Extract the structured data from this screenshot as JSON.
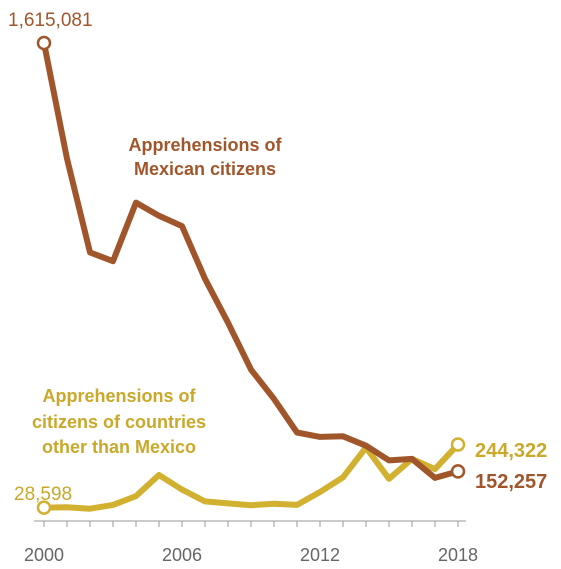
{
  "chart_data": {
    "type": "line",
    "x": [
      2000,
      2001,
      2002,
      2003,
      2004,
      2005,
      2006,
      2007,
      2008,
      2009,
      2010,
      2011,
      2012,
      2013,
      2014,
      2015,
      2016,
      2017,
      2018
    ],
    "xlim": [
      2000,
      2018
    ],
    "ylim": [
      0,
      1615081
    ],
    "xticks": [
      "2000",
      "2006",
      "2012",
      "2018"
    ],
    "grid": false,
    "series": [
      {
        "name": "Apprehensions of Mexican citizens",
        "label_lines": [
          "Apprehensions of",
          "Mexican citizens"
        ],
        "color": "#a0562a",
        "values": [
          1615081,
          1220000,
          900000,
          870000,
          1070000,
          1025000,
          990000,
          810000,
          660000,
          500000,
          400000,
          285000,
          270000,
          272000,
          240000,
          190000,
          195000,
          130000,
          152257
        ],
        "start_label": "1,615,081",
        "end_label": "152,257"
      },
      {
        "name": "Apprehensions of citizens of countries other than Mexico",
        "label_lines": [
          "Apprehensions of",
          "citizens of countries",
          "other than Mexico"
        ],
        "color": "#d1b12f",
        "values": [
          28598,
          30000,
          25000,
          38000,
          68000,
          140000,
          90000,
          50000,
          43000,
          37000,
          42000,
          38000,
          82000,
          132000,
          234000,
          127000,
          195000,
          160000,
          244322
        ],
        "start_label": "28,598",
        "end_label": "244,322"
      }
    ]
  }
}
